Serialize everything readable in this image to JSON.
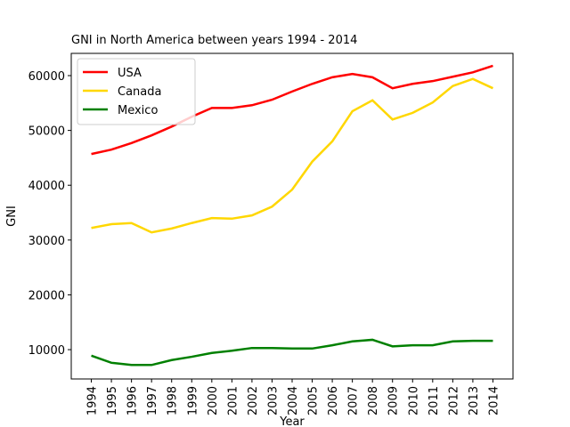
{
  "chart_data": {
    "type": "line",
    "title": "GNI in North America between years 1994 - 2014",
    "x_label": "Year",
    "y_label": "GNI",
    "x": [
      1994,
      1995,
      1996,
      1997,
      1998,
      1999,
      2000,
      2001,
      2002,
      2003,
      2004,
      2005,
      2006,
      2007,
      2008,
      2009,
      2010,
      2011,
      2012,
      2013,
      2014
    ],
    "xlim": [
      1993,
      2015
    ],
    "xticks": [
      1994,
      1995,
      1996,
      1997,
      1998,
      1999,
      2000,
      2001,
      2002,
      2003,
      2004,
      2005,
      2006,
      2007,
      2008,
      2009,
      2010,
      2011,
      2012,
      2013,
      2014
    ],
    "ylim": [
      4650,
      64060
    ],
    "yticks": [
      10000,
      20000,
      30000,
      40000,
      50000,
      60000
    ],
    "legend": "upper left",
    "series": [
      {
        "name": "USA",
        "color": "#ff0000",
        "values": [
          45700,
          46500,
          47700,
          49100,
          50700,
          52500,
          54100,
          54100,
          54600,
          55600,
          57100,
          58500,
          59700,
          60300,
          59700,
          57700,
          58500,
          59000,
          59800,
          60600,
          61800
        ]
      },
      {
        "name": "Canada",
        "color": "#ffd700",
        "values": [
          32200,
          32900,
          33100,
          31400,
          32100,
          33100,
          34000,
          33900,
          34500,
          36100,
          39200,
          44300,
          48000,
          53500,
          55500,
          52000,
          53200,
          55100,
          58100,
          59400,
          57700
        ]
      },
      {
        "name": "Mexico",
        "color": "#008000",
        "values": [
          8900,
          7600,
          7200,
          7200,
          8100,
          8700,
          9400,
          9800,
          10300,
          10300,
          10200,
          10200,
          10800,
          11500,
          11800,
          10600,
          10800,
          10800,
          11500,
          11600,
          11600
        ]
      }
    ]
  }
}
